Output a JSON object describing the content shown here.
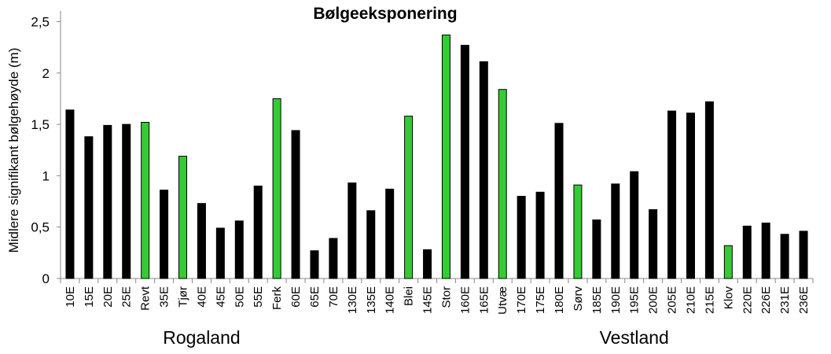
{
  "chart_data": {
    "type": "bar",
    "title": "Bølgeeksponering",
    "xlabel": "",
    "ylabel": "Midlere signifikant bølgehøyde  (m)",
    "ylim": [
      0,
      2.5
    ],
    "yticks": [
      "0",
      "0,5",
      "1",
      "1,5",
      "2",
      "2,5"
    ],
    "grid": false,
    "legend": null,
    "colors": {
      "default": "#000000",
      "highlight": "#33cc33"
    },
    "categories": [
      "10E",
      "15E",
      "20E",
      "25E",
      "Revt",
      "35E",
      "Tjør",
      "40E",
      "45E",
      "50E",
      "55E",
      "Ferk",
      "60E",
      "65E",
      "70E",
      "130E",
      "135E",
      "140E",
      "Blei",
      "145E",
      "Stor",
      "160E",
      "165E",
      "Utvæ",
      "170E",
      "175E",
      "180E",
      "Sørv",
      "185E",
      "190E",
      "195E",
      "200E",
      "205E",
      "210E",
      "215E",
      "Klov",
      "220E",
      "226E",
      "231E",
      "236E"
    ],
    "values": [
      1.64,
      1.38,
      1.49,
      1.5,
      1.52,
      0.86,
      1.19,
      0.73,
      0.49,
      0.56,
      0.9,
      1.75,
      1.44,
      0.27,
      0.39,
      0.93,
      0.66,
      0.87,
      1.58,
      0.28,
      2.37,
      2.27,
      2.11,
      1.84,
      0.8,
      0.84,
      1.51,
      0.91,
      0.57,
      0.92,
      1.04,
      0.67,
      1.63,
      1.61,
      1.72,
      0.32,
      0.51,
      0.54,
      0.43,
      0.46
    ],
    "highlighted": [
      "Revt",
      "Tjør",
      "Ferk",
      "Blei",
      "Stor",
      "Utvæ",
      "Sørv",
      "Klov"
    ],
    "groups": [
      {
        "label": "Rogaland",
        "center_category": "40E"
      },
      {
        "label": "Vestland",
        "center_category": "195E"
      }
    ]
  }
}
